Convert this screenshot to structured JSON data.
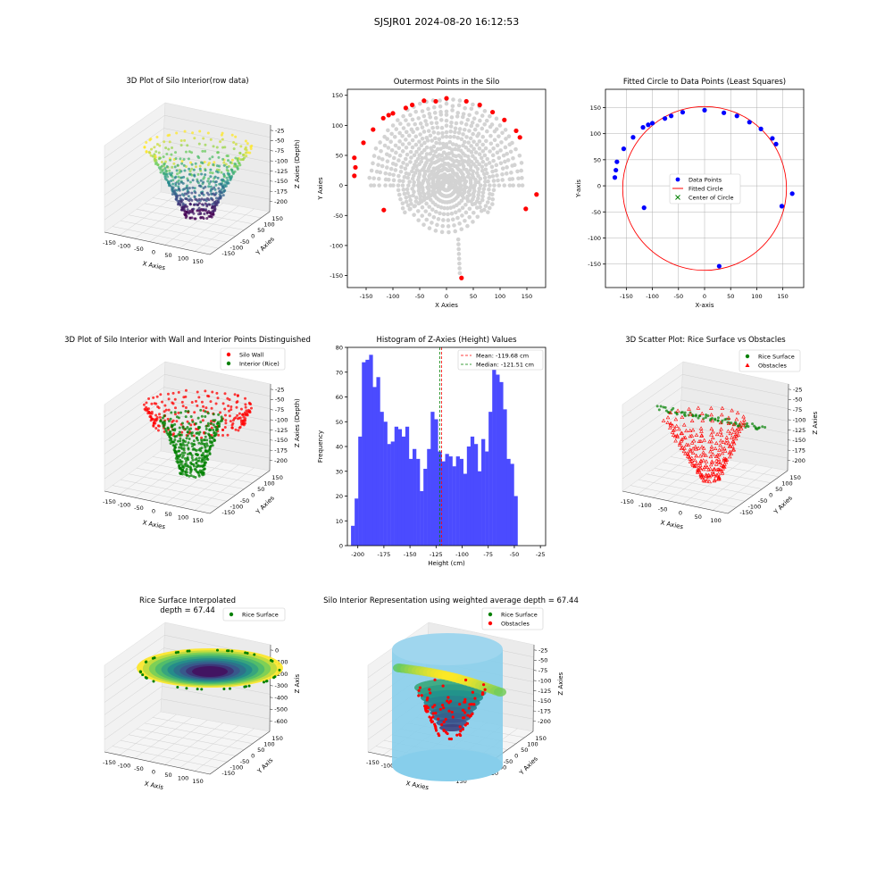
{
  "suptitle": "SJSJR01 2024-08-20 16:12:53",
  "colors": {
    "red": "#ff0000",
    "green": "#008000",
    "blue": "#0000ff",
    "grey": "#d3d3d3",
    "hist": "#4b4bff",
    "skyblue": "#87ceeb",
    "viridis": [
      "#440154",
      "#3b528b",
      "#21918c",
      "#5ec962",
      "#fde725"
    ]
  },
  "chart_data": [
    {
      "id": "p1",
      "type": "scatter3d",
      "title": "3D Plot of Silo Interior(row data)",
      "xlabel": "X Axies",
      "ylabel": "Y Axies",
      "zlabel": "Z Axies (Depth)",
      "xticks": [
        "-150",
        "-100",
        "-50",
        "0",
        "50",
        "100",
        "150"
      ],
      "yticks": [
        "-150",
        "-100",
        "-50",
        "0",
        "50",
        "100",
        "150"
      ],
      "zticks": [
        "-25",
        "-50",
        "-75",
        "-100",
        "-125",
        "-150",
        "-175",
        "-200"
      ],
      "colormap": "viridis"
    },
    {
      "id": "p2",
      "type": "scatter",
      "title": "Outermost Points in the Silo",
      "xlabel": "X Axies",
      "ylabel": "Y Axies",
      "xlim": [
        -185,
        185
      ],
      "ylim": [
        -170,
        160
      ],
      "xticks": [
        -150,
        -100,
        -50,
        0,
        50,
        100,
        150
      ],
      "yticks": [
        -150,
        -100,
        -50,
        0,
        50,
        100,
        150
      ],
      "series": [
        {
          "role": "outermost",
          "color": "red",
          "x": [
            -172,
            -170,
            -172,
            -155,
            -137,
            -118,
            -108,
            -100,
            -76,
            -64,
            -42,
            -20,
            0,
            37,
            62,
            86,
            108,
            130,
            137,
            148,
            168,
            28,
            -117
          ],
          "y": [
            16,
            30,
            46,
            71,
            93,
            112,
            117,
            120,
            129,
            134,
            141,
            140,
            145,
            140,
            134,
            122,
            109,
            91,
            80,
            -39,
            -15,
            -154,
            -41
          ]
        }
      ]
    },
    {
      "id": "p3",
      "type": "scatter",
      "title": "Fitted Circle to Data Points (Least Squares)",
      "xlabel": "X-axis",
      "ylabel": "Y-axis",
      "xlim": [
        -190,
        190
      ],
      "ylim": [
        -195,
        185
      ],
      "xticks": [
        -150,
        -100,
        -50,
        0,
        50,
        100,
        150
      ],
      "yticks": [
        -150,
        -100,
        -50,
        0,
        50,
        100,
        150
      ],
      "legend": [
        "Data Points",
        "Fitted Circle",
        "Center of Circle"
      ],
      "legend_loc": "center",
      "circle": {
        "cx": 0,
        "cy": -5,
        "r": 157
      },
      "series": [
        {
          "name": "Data Points",
          "color": "blue",
          "x": [
            -172,
            -170,
            -168,
            -155,
            -137,
            -118,
            -108,
            -100,
            -76,
            -64,
            -42,
            0,
            37,
            62,
            86,
            108,
            130,
            137,
            148,
            168,
            28,
            -116
          ],
          "y": [
            16,
            30,
            46,
            71,
            93,
            112,
            117,
            120,
            129,
            134,
            141,
            145,
            140,
            134,
            122,
            109,
            91,
            80,
            -39,
            -15,
            -154,
            -42
          ]
        }
      ]
    },
    {
      "id": "p4",
      "type": "scatter3d",
      "title": "3D Plot of Silo Interior with Wall and Interior Points Distinguished",
      "xlabel": "X Axies",
      "ylabel": "Y Axies",
      "zlabel": "Z Axies (Depth)",
      "xticks": [
        "-150",
        "-100",
        "-50",
        "0",
        "50",
        "100",
        "150"
      ],
      "yticks": [
        "-150",
        "-100",
        "-50",
        "0",
        "50",
        "100",
        "150"
      ],
      "zticks": [
        "-25",
        "-50",
        "-75",
        "-100",
        "-125",
        "-150",
        "-175",
        "-200"
      ],
      "legend": [
        "Silo Wall",
        "Interior (Rice)"
      ]
    },
    {
      "id": "p5",
      "type": "bar",
      "title": "Histogram of Z-Axies (Height) Values",
      "xlabel": "Height (cm)",
      "ylabel": "Frequency",
      "xlim": [
        -210,
        -20
      ],
      "ylim": [
        0,
        80
      ],
      "xticks": [
        -200,
        -175,
        -150,
        -125,
        -100,
        -75,
        -50,
        -25
      ],
      "yticks": [
        0,
        10,
        20,
        30,
        40,
        50,
        60,
        70,
        80
      ],
      "bin_start": -206.5,
      "bin_width": 3.47,
      "values": [
        8,
        19,
        44,
        74,
        75,
        77,
        64,
        68,
        54,
        50,
        41,
        42,
        48,
        47,
        44,
        48,
        35,
        39,
        35,
        22,
        31,
        39,
        54,
        51,
        38,
        34,
        37,
        36,
        32,
        36,
        35,
        29,
        40,
        44,
        41,
        30,
        43,
        38,
        54,
        72,
        69,
        66,
        55,
        35,
        33,
        20
      ],
      "mean": -119.68,
      "median": -121.51,
      "legend": [
        "Mean: -119.68 cm",
        "Median: -121.51 cm"
      ]
    },
    {
      "id": "p6",
      "type": "scatter3d",
      "title": "3D Scatter Plot: Rice Surface vs Obstacles",
      "xlabel": "X Axies",
      "ylabel": "Y Axies",
      "zlabel": "Z Axies",
      "xticks": [
        "-150",
        "-100",
        "-50",
        "0",
        "50",
        "100"
      ],
      "yticks": [
        "-150",
        "-100",
        "-50",
        "0",
        "50",
        "100",
        "150"
      ],
      "zticks": [
        "-25",
        "-50",
        "-75",
        "-100",
        "-125",
        "-150",
        "-175",
        "-200"
      ],
      "legend": [
        "Rice Surface",
        "Obstacles"
      ]
    },
    {
      "id": "p7",
      "type": "surface3d",
      "title": "Rice Surface Interpolated",
      "subtitle": "depth = 67.44",
      "xlabel": "X Axis",
      "ylabel": "Y Axis",
      "zlabel": "Z Axis",
      "xticks": [
        "-150",
        "-100",
        "-50",
        "0",
        "50",
        "100",
        "150"
      ],
      "yticks": [
        "-150",
        "-100",
        "-50",
        "0",
        "50",
        "100",
        "150"
      ],
      "zticks": [
        "0",
        "-100",
        "-200",
        "-300",
        "-400",
        "-500",
        "-600"
      ],
      "legend": [
        "Rice Surface"
      ]
    },
    {
      "id": "p8",
      "type": "surface3d",
      "title": "Silo Interior Representation using weighted average depth = 67.44",
      "xlabel": "X Axies",
      "ylabel": "Y Axies",
      "zlabel": "Z Axies",
      "xticks": [
        "-150",
        "-100",
        "-50",
        "0",
        "50",
        "100",
        "150"
      ],
      "yticks": [
        "-150",
        "-100",
        "-50",
        "0",
        "50",
        "100",
        "150"
      ],
      "zticks": [
        "-25",
        "-50",
        "-75",
        "-100",
        "-125",
        "-150",
        "-175",
        "-200"
      ],
      "legend": [
        "Rice Surface",
        "Obstacles"
      ]
    }
  ]
}
